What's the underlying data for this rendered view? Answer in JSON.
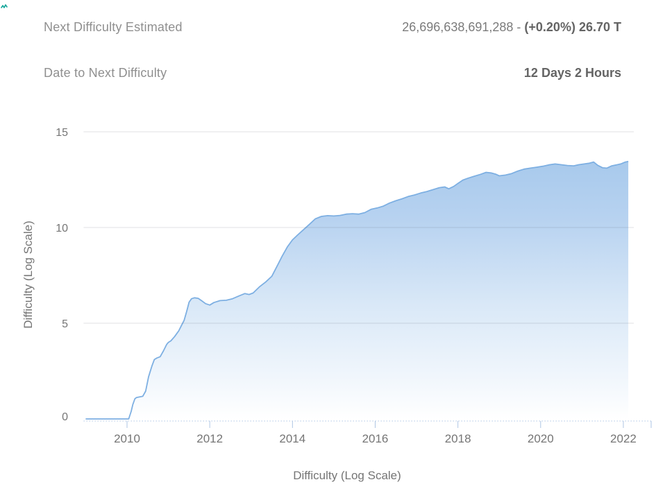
{
  "decorations": {
    "corner_mark_color": "#14a79b"
  },
  "header": {
    "rows": [
      {
        "label": "Next Difficulty Estimated",
        "value_regular": "26,696,638,691,288 - ",
        "value_bold": "(+0.20%) 26.70 T"
      },
      {
        "label": "Date to Next Difficulty",
        "value_regular": "",
        "value_bold": "12 Days 2 Hours"
      }
    ]
  },
  "chart_data": {
    "type": "area",
    "title": "",
    "xlabel": "Difficulty (Log Scale)",
    "ylabel": "Difficulty (Log Scale)",
    "x_ticks": [
      2010,
      2012,
      2014,
      2016,
      2018,
      2020,
      2022
    ],
    "x_tick_labels": [
      "2010",
      "2012",
      "2014",
      "2016",
      "2018",
      "2020",
      "2022"
    ],
    "y_ticks": [
      0,
      5,
      10,
      15
    ],
    "y_tick_labels": [
      "0",
      "5",
      "10",
      "15"
    ],
    "ylim": [
      0,
      15
    ],
    "xlim": [
      2008.95,
      2022.25
    ],
    "grid": true,
    "legend": "none",
    "line_color": "#7dafe2",
    "fill_gradient_top": "#a0c5ea",
    "fill_gradient_bottom": "#ffffff",
    "axis_color": "#aec6e4",
    "tick_label_color": "#757575",
    "series": [
      {
        "name": "Difficulty (Log Scale)",
        "x": [
          2009.0,
          2010.04,
          2010.1,
          2010.14,
          2010.19,
          2010.23,
          2010.38,
          2010.45,
          2010.52,
          2010.6,
          2010.66,
          2010.72,
          2010.8,
          2010.88,
          2010.96,
          2011.0,
          2011.06,
          2011.15,
          2011.25,
          2011.32,
          2011.38,
          2011.44,
          2011.5,
          2011.56,
          2011.63,
          2011.72,
          2011.8,
          2011.9,
          2012.0,
          2012.1,
          2012.25,
          2012.4,
          2012.55,
          2012.7,
          2012.85,
          2012.95,
          2013.05,
          2013.2,
          2013.35,
          2013.5,
          2013.62,
          2013.75,
          2013.88,
          2014.0,
          2014.12,
          2014.25,
          2014.4,
          2014.55,
          2014.7,
          2014.85,
          2015.0,
          2015.15,
          2015.3,
          2015.45,
          2015.6,
          2015.75,
          2015.9,
          2016.05,
          2016.2,
          2016.35,
          2016.5,
          2016.65,
          2016.8,
          2016.95,
          2017.1,
          2017.25,
          2017.4,
          2017.55,
          2017.68,
          2017.78,
          2017.9,
          2018.0,
          2018.12,
          2018.25,
          2018.4,
          2018.55,
          2018.68,
          2018.8,
          2018.92,
          2019.0,
          2019.15,
          2019.3,
          2019.45,
          2019.6,
          2019.75,
          2019.9,
          2020.05,
          2020.2,
          2020.35,
          2020.5,
          2020.65,
          2020.8,
          2020.92,
          2021.05,
          2021.18,
          2021.28,
          2021.38,
          2021.5,
          2021.6,
          2021.72,
          2021.85,
          2021.95,
          2022.05,
          2022.12
        ],
        "y": [
          0,
          0,
          0.4,
          0.75,
          1.05,
          1.12,
          1.18,
          1.45,
          2.2,
          2.75,
          3.1,
          3.18,
          3.25,
          3.55,
          3.9,
          4.0,
          4.08,
          4.3,
          4.6,
          4.9,
          5.15,
          5.6,
          6.1,
          6.28,
          6.33,
          6.3,
          6.18,
          6.02,
          5.95,
          6.08,
          6.18,
          6.2,
          6.28,
          6.42,
          6.55,
          6.5,
          6.58,
          6.9,
          7.15,
          7.45,
          7.95,
          8.5,
          9.0,
          9.35,
          9.6,
          9.85,
          10.15,
          10.45,
          10.58,
          10.62,
          10.6,
          10.63,
          10.7,
          10.72,
          10.7,
          10.78,
          10.95,
          11.02,
          11.12,
          11.28,
          11.4,
          11.5,
          11.62,
          11.7,
          11.8,
          11.88,
          11.98,
          12.08,
          12.12,
          12.02,
          12.15,
          12.3,
          12.48,
          12.58,
          12.68,
          12.78,
          12.88,
          12.85,
          12.78,
          12.7,
          12.74,
          12.82,
          12.95,
          13.05,
          13.1,
          13.15,
          13.2,
          13.27,
          13.32,
          13.28,
          13.24,
          13.22,
          13.28,
          13.32,
          13.36,
          13.42,
          13.25,
          13.12,
          13.1,
          13.22,
          13.28,
          13.33,
          13.42,
          13.45
        ]
      }
    ]
  }
}
